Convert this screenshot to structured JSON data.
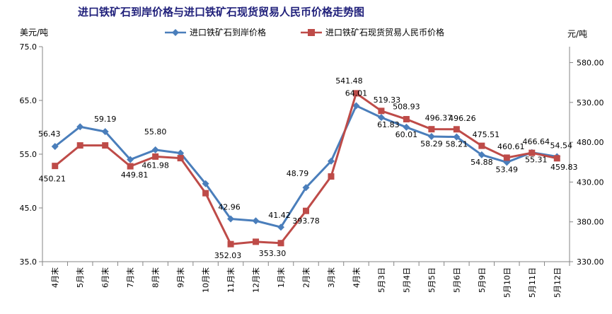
{
  "chart_data": {
    "type": "line",
    "title": "进口铁矿石到岸价格与进口铁矿石现货贸易人民币价格走势图",
    "ylabel_left": "美元/吨",
    "ylabel_right": "元/吨",
    "categories": [
      "4月末",
      "5月末",
      "6月末",
      "7月末",
      "8月末",
      "9月末",
      "10月末",
      "11月末",
      "12月末",
      "1月末",
      "2月末",
      "3月末",
      "4月末",
      "5月3日",
      "5月4日",
      "5月5日",
      "5月6日",
      "5月9日",
      "5月10日",
      "5月11日",
      "5月12日"
    ],
    "left_axis": {
      "ylim": [
        35.0,
        75.0
      ],
      "ticks": [
        "35.0",
        "45.0",
        "55.0",
        "65.0",
        "75.0"
      ]
    },
    "right_axis": {
      "ylim": [
        330.0,
        600.0
      ],
      "ticks": [
        "330.00",
        "380.00",
        "430.00",
        "480.00",
        "530.00",
        "580.00"
      ]
    },
    "series": [
      {
        "name": "进口铁矿石到岸价格",
        "axis": "left",
        "color": "#4A7EBB",
        "marker": "diamond",
        "values": [
          56.43,
          60.1,
          59.19,
          54.0,
          55.8,
          55.2,
          49.5,
          42.96,
          42.6,
          41.42,
          48.79,
          53.7,
          64.01,
          61.83,
          60.01,
          58.29,
          58.21,
          54.88,
          53.49,
          55.31,
          54.54
        ],
        "labels": [
          "56.43",
          "",
          "59.19",
          "",
          "55.80",
          "",
          "",
          "42.96",
          "",
          "41.42",
          "48.79",
          "",
          "64.01",
          "61.83",
          "60.01",
          "58.29",
          "58.21",
          "54.88",
          "53.49",
          "55.31",
          "54.54"
        ]
      },
      {
        "name": "进口铁矿石现货贸易人民币价格",
        "axis": "right",
        "color": "#BE4B48",
        "marker": "square",
        "values": [
          450.21,
          476.0,
          476.0,
          449.81,
          461.98,
          460.0,
          416.0,
          352.03,
          355.0,
          353.3,
          393.78,
          437.0,
          541.48,
          519.33,
          508.93,
          496.37,
          496.26,
          475.51,
          460.61,
          466.64,
          459.83
        ],
        "labels": [
          "450.21",
          "",
          "",
          "449.81",
          "461.98",
          "",
          "",
          "352.03",
          "",
          "353.30",
          "393.78",
          "",
          "541.48",
          "519.33",
          "508.93",
          "496.37",
          "496.26",
          "475.51",
          "460.61",
          "466.64",
          "459.83"
        ]
      }
    ],
    "grid": false,
    "legend_position": "top"
  }
}
